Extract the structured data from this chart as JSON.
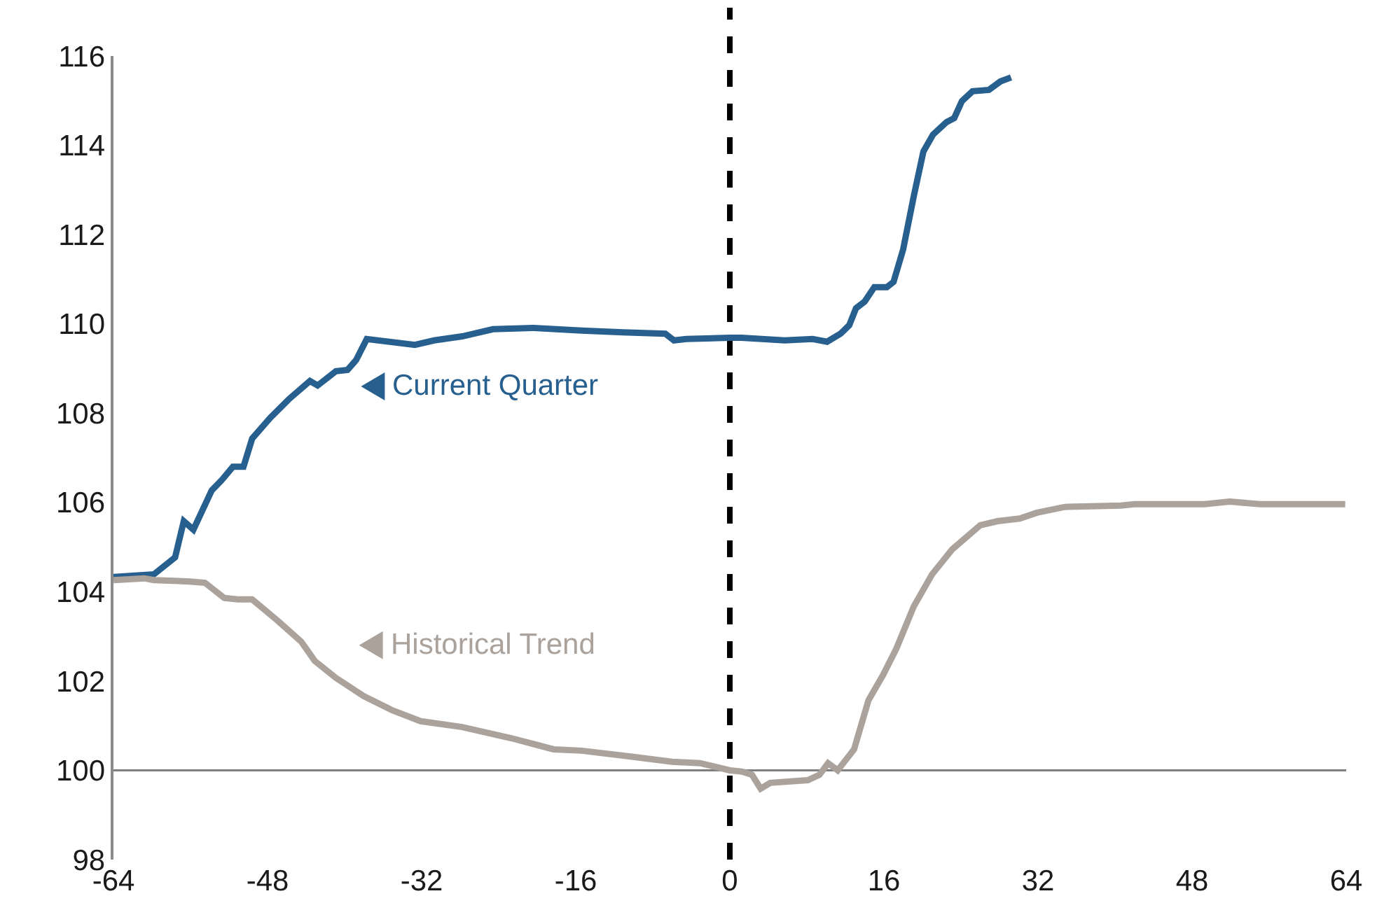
{
  "chart_data": {
    "type": "line",
    "xlim": [
      -64,
      64
    ],
    "ylim": [
      98,
      116
    ],
    "xticks": [
      -64,
      -48,
      -32,
      -16,
      0,
      16,
      32,
      48,
      64
    ],
    "yticks": [
      98,
      100,
      102,
      104,
      106,
      108,
      110,
      112,
      114,
      116
    ],
    "grid": false,
    "legend": "left",
    "marker": "none",
    "line_style": "solid",
    "series": [
      {
        "name": "Current Quarter",
        "color": "#275f8e",
        "x": [
          -64,
          -59.8,
          -57.6,
          -56.7,
          -55.7,
          -53.8,
          -52.8,
          -51.6,
          -50.5,
          -49.6,
          -47.7,
          -45.8,
          -43.6,
          -42.8,
          -40.9,
          -39.7,
          -38.8,
          -37.7,
          -32.7,
          -30.7,
          -27.8,
          -24.6,
          -20.5,
          -15.4,
          -11.1,
          -6.7,
          -5.8,
          -4.5,
          0,
          1.2,
          5.7,
          8.6,
          10.1,
          11.5,
          12.4,
          13.1,
          14,
          15,
          16.3,
          17,
          18,
          19.1,
          20.1,
          21.1,
          22.5,
          23.3,
          24.1,
          25.2,
          26.9,
          28.1,
          29.2
        ],
        "values": [
          104.33,
          104.39,
          104.77,
          105.58,
          105.39,
          106.27,
          106.49,
          106.8,
          106.8,
          107.43,
          107.9,
          108.31,
          108.72,
          108.62,
          108.94,
          108.97,
          109.19,
          109.66,
          109.53,
          109.63,
          109.72,
          109.88,
          109.91,
          109.85,
          109.81,
          109.78,
          109.63,
          109.66,
          109.69,
          109.69,
          109.63,
          109.66,
          109.6,
          109.78,
          109.97,
          110.35,
          110.5,
          110.82,
          110.82,
          110.94,
          111.67,
          112.86,
          113.86,
          114.24,
          114.52,
          114.61,
          114.99,
          115.21,
          115.24,
          115.43,
          115.52
        ]
      },
      {
        "name": "Historical Trend",
        "color": "#aaa29b",
        "x": [
          -64,
          -60.8,
          -59.8,
          -56.1,
          -54.5,
          -52.5,
          -51.1,
          -49.6,
          -47,
          -44.5,
          -43.1,
          -40.9,
          -38,
          -35.1,
          -32.1,
          -27.8,
          -22.7,
          -18.3,
          -15.4,
          -10.3,
          -6,
          -3.1,
          0,
          1.3,
          2.3,
          3.2,
          4.2,
          8.1,
          9.3,
          10.2,
          11.2,
          12.9,
          14.4,
          15.9,
          17.3,
          19.1,
          21,
          23.1,
          26,
          27.8,
          30.1,
          31.9,
          34.8,
          40.6,
          42,
          49.3,
          51.9,
          55.1,
          63.9
        ],
        "values": [
          104.26,
          104.3,
          104.26,
          104.23,
          104.2,
          103.86,
          103.83,
          103.83,
          103.36,
          102.88,
          102.45,
          102.07,
          101.66,
          101.35,
          101.1,
          100.97,
          100.72,
          100.47,
          100.44,
          100.31,
          100.19,
          100.16,
          100,
          99.97,
          99.9,
          99.59,
          99.72,
          99.78,
          99.9,
          100.16,
          100,
          100.47,
          101.57,
          102.13,
          102.73,
          103.67,
          104.39,
          104.95,
          105.49,
          105.58,
          105.64,
          105.77,
          105.9,
          105.93,
          105.96,
          105.96,
          106.02,
          105.96,
          105.96
        ]
      }
    ],
    "ref_lines": [
      {
        "axis": "y",
        "value": 100,
        "color": "#7f7f7f",
        "line_style": "solid"
      },
      {
        "axis": "x",
        "value": 0,
        "color": "#000000",
        "line_style": "dashed"
      }
    ]
  }
}
